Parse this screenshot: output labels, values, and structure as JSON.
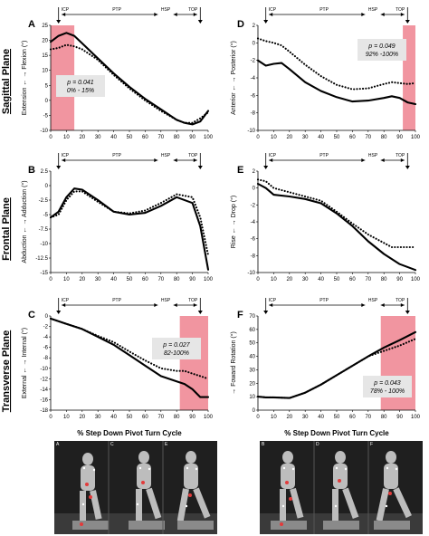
{
  "figure": {
    "row_labels": [
      "Sagittal Plane",
      "Frontal Plane",
      "Transverse Plane"
    ],
    "phase_labels": {
      "icp": "ICP",
      "ptp": "PTP",
      "hsp": "HSP",
      "top": "TOP"
    },
    "xlabel": "% Step Down Pivot Turn Cycle",
    "photo_labels": {
      "left": [
        "A",
        "C",
        "E"
      ],
      "right": [
        "B",
        "D",
        "F"
      ]
    }
  },
  "chart_data": [
    {
      "id": "A",
      "type": "line",
      "ylabel_parts": [
        "Extension",
        "←",
        "→",
        "Flexion",
        "(°)"
      ],
      "ylabel": "Extension ← → Flexion (°)",
      "ylim": [
        -10,
        25
      ],
      "yticks": [
        -10,
        -5,
        0,
        5,
        10,
        15,
        20,
        25
      ],
      "xlim": [
        0,
        100
      ],
      "xticks": [
        0,
        10,
        20,
        30,
        40,
        50,
        60,
        70,
        80,
        90,
        100
      ],
      "highlight": [
        0,
        15
      ],
      "annotation": {
        "p": "p = 0.041",
        "range": "0% - 15%"
      },
      "annotation_pos": "left",
      "series": [
        {
          "style": "solid",
          "x": [
            0,
            5,
            10,
            15,
            20,
            30,
            40,
            50,
            60,
            70,
            80,
            85,
            90,
            95,
            100
          ],
          "y": [
            19.5,
            21.5,
            22.5,
            21.5,
            19,
            14,
            9,
            4.5,
            0.5,
            -3,
            -6.5,
            -7.5,
            -8,
            -7,
            -3.5
          ]
        },
        {
          "style": "dotted",
          "x": [
            0,
            5,
            10,
            15,
            20,
            30,
            40,
            50,
            60,
            70,
            80,
            85,
            90,
            95,
            100
          ],
          "y": [
            17,
            17.5,
            18.5,
            18,
            17,
            13.5,
            8.5,
            4,
            0,
            -3.5,
            -6.5,
            -7.5,
            -7.5,
            -6,
            -4
          ]
        }
      ]
    },
    {
      "id": "D",
      "type": "line",
      "ylabel_parts": [
        "Anterior",
        "←",
        "→",
        "Posterior",
        "(°)"
      ],
      "ylabel": "Anterior ← → Posterior (°)",
      "ylim": [
        -10,
        2
      ],
      "yticks": [
        -10,
        -8,
        -6,
        -4,
        -2,
        0,
        2
      ],
      "xlim": [
        0,
        100
      ],
      "xticks": [
        0,
        10,
        20,
        30,
        40,
        50,
        60,
        70,
        80,
        90,
        100
      ],
      "highlight": [
        92,
        100
      ],
      "annotation": {
        "p": "p = 0.049",
        "range": "92% -100%"
      },
      "annotation_pos": "right",
      "series": [
        {
          "style": "solid",
          "x": [
            0,
            5,
            10,
            15,
            20,
            30,
            40,
            50,
            60,
            70,
            80,
            85,
            90,
            95,
            100
          ],
          "y": [
            -2,
            -2.6,
            -2.4,
            -2.3,
            -3,
            -4.5,
            -5.5,
            -6.2,
            -6.7,
            -6.6,
            -6.3,
            -6.1,
            -6.3,
            -6.8,
            -7
          ]
        },
        {
          "style": "dotted",
          "x": [
            0,
            5,
            10,
            15,
            20,
            30,
            40,
            50,
            60,
            70,
            80,
            85,
            90,
            95,
            100
          ],
          "y": [
            0.5,
            0.2,
            0,
            -0.3,
            -1,
            -2.5,
            -3.8,
            -4.8,
            -5.3,
            -5.2,
            -4.7,
            -4.5,
            -4.6,
            -4.7,
            -4.6
          ]
        }
      ]
    },
    {
      "id": "B",
      "type": "line",
      "ylabel_parts": [
        "Abduction",
        "←",
        "→",
        "Adduction",
        "(°)"
      ],
      "ylabel": "Abduction ← → Adduction (°)",
      "ylim": [
        -15,
        2.5
      ],
      "yticks": [
        -15,
        -12.5,
        -10,
        -7.5,
        -5,
        -2.5,
        0,
        2.5
      ],
      "xlim": [
        0,
        100
      ],
      "xticks": [
        0,
        10,
        20,
        30,
        40,
        50,
        60,
        70,
        80,
        90,
        100
      ],
      "highlight": null,
      "annotation": null,
      "series": [
        {
          "style": "solid",
          "x": [
            0,
            5,
            10,
            15,
            20,
            30,
            40,
            50,
            60,
            70,
            80,
            90,
            95,
            100
          ],
          "y": [
            -5.5,
            -4.5,
            -2,
            -0.5,
            -0.7,
            -2.5,
            -4.5,
            -5,
            -4.7,
            -3.5,
            -2,
            -3,
            -7,
            -14.5
          ]
        },
        {
          "style": "dotted",
          "x": [
            0,
            5,
            10,
            15,
            20,
            30,
            40,
            50,
            60,
            70,
            80,
            90,
            95,
            100
          ],
          "y": [
            -5.5,
            -5,
            -2.5,
            -1,
            -1,
            -2.8,
            -4.5,
            -4.8,
            -4.3,
            -3,
            -1.5,
            -2,
            -5.5,
            -12
          ]
        }
      ]
    },
    {
      "id": "E",
      "type": "line",
      "ylabel_parts": [
        "Rise",
        "←",
        "→",
        "Drop",
        "(°)"
      ],
      "ylabel": "Rise ← → Drop (°)",
      "ylim": [
        -10,
        2
      ],
      "yticks": [
        -10,
        -8,
        -6,
        -4,
        -2,
        0,
        2
      ],
      "xlim": [
        0,
        100
      ],
      "xticks": [
        0,
        10,
        20,
        30,
        40,
        50,
        60,
        70,
        80,
        90,
        100
      ],
      "highlight": null,
      "annotation": null,
      "series": [
        {
          "style": "solid",
          "x": [
            0,
            5,
            10,
            20,
            30,
            40,
            50,
            60,
            70,
            80,
            90,
            100
          ],
          "y": [
            0.5,
            0,
            -0.8,
            -1,
            -1.3,
            -1.8,
            -3,
            -4.5,
            -6.3,
            -7.8,
            -9,
            -9.7
          ]
        },
        {
          "style": "dotted",
          "x": [
            0,
            5,
            10,
            20,
            30,
            40,
            50,
            60,
            70,
            80,
            85,
            90,
            100
          ],
          "y": [
            1,
            0.8,
            0,
            -0.5,
            -1,
            -1.5,
            -2.8,
            -4.2,
            -5.5,
            -6.5,
            -7,
            -7,
            -7
          ]
        }
      ]
    },
    {
      "id": "C",
      "type": "line",
      "ylabel_parts": [
        "External",
        "←",
        "→",
        "Internal",
        "(°)"
      ],
      "ylabel": "External ← → Internal (°)",
      "ylim": [
        -18,
        0
      ],
      "yticks": [
        -18,
        -16,
        -14,
        -12,
        -10,
        -8,
        -6,
        -4,
        -2,
        0
      ],
      "xlim": [
        0,
        100
      ],
      "xticks": [
        0,
        10,
        20,
        30,
        40,
        50,
        60,
        70,
        80,
        90,
        100
      ],
      "highlight": [
        82,
        100
      ],
      "annotation": {
        "p": "p = 0.027",
        "range": "82-100%"
      },
      "annotation_pos": "right",
      "series": [
        {
          "style": "solid",
          "x": [
            0,
            10,
            20,
            30,
            40,
            50,
            60,
            70,
            80,
            85,
            90,
            95,
            100
          ],
          "y": [
            -0.5,
            -1.5,
            -2.5,
            -4,
            -5.5,
            -7.5,
            -9.5,
            -11.5,
            -12.5,
            -13,
            -14,
            -15.5,
            -15.5
          ]
        },
        {
          "style": "dotted",
          "x": [
            0,
            10,
            20,
            30,
            40,
            50,
            60,
            70,
            80,
            85,
            90,
            95,
            100
          ],
          "y": [
            -0.5,
            -1.5,
            -2.5,
            -3.8,
            -5,
            -6.8,
            -8.5,
            -10,
            -10.5,
            -10.5,
            -11,
            -11.5,
            -12
          ]
        }
      ]
    },
    {
      "id": "F",
      "type": "line",
      "ylabel_parts": [
        "→",
        "Foward Rotation",
        "(°)"
      ],
      "ylabel": "→ Foward Rotation (°)",
      "ylim": [
        0,
        70
      ],
      "yticks": [
        0,
        10,
        20,
        30,
        40,
        50,
        60,
        70
      ],
      "xlim": [
        0,
        100
      ],
      "xticks": [
        0,
        10,
        20,
        30,
        40,
        50,
        60,
        70,
        80,
        90,
        100
      ],
      "highlight": [
        78,
        100
      ],
      "annotation": {
        "p": "p = 0.043",
        "range": "78% - 100%"
      },
      "annotation_pos": "right",
      "series": [
        {
          "style": "solid",
          "x": [
            0,
            5,
            10,
            20,
            30,
            40,
            50,
            60,
            70,
            80,
            90,
            100
          ],
          "y": [
            10,
            9.5,
            9.5,
            9,
            13,
            19,
            26,
            33,
            40,
            46.5,
            52,
            58
          ]
        },
        {
          "style": "dotted",
          "x": [
            0,
            5,
            10,
            20,
            30,
            40,
            50,
            60,
            70,
            80,
            90,
            100
          ],
          "y": [
            10,
            9.5,
            9.5,
            9,
            13,
            19,
            26,
            33,
            40,
            44,
            48,
            53
          ]
        }
      ]
    }
  ],
  "colors": {
    "highlight": "#f08a96",
    "line": "#000000",
    "box": "#e6e6e6"
  }
}
